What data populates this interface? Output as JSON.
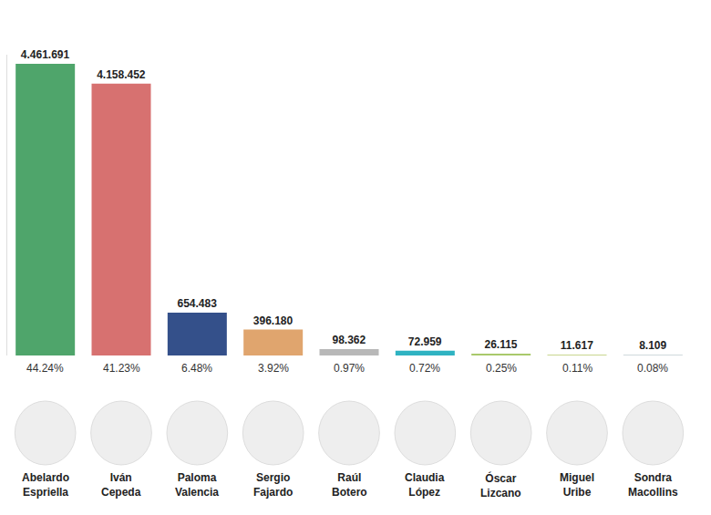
{
  "chart_data": {
    "type": "bar",
    "categories": [
      "Abelardo Espriella",
      "Iván Cepeda",
      "Paloma Valencia",
      "Sergio Fajardo",
      "Raúl Botero",
      "Claudia López",
      "Óscar Lizcano",
      "Miguel Uribe",
      "Sondra Macollins"
    ],
    "values": [
      4461691,
      4158452,
      654483,
      396180,
      98362,
      72959,
      26115,
      11617,
      8109
    ],
    "value_labels": [
      "4.461.691",
      "4.158.452",
      "654.483",
      "396.180",
      "98.362",
      "72.959",
      "26.115",
      "11.617",
      "8.109"
    ],
    "percentage_labels": [
      "44.24%",
      "41.23%",
      "6.48%",
      "3.92%",
      "0.97%",
      "0.72%",
      "0.25%",
      "0.11%",
      "0.08%"
    ],
    "colors": [
      "#4fa56b",
      "#d77170",
      "#34508a",
      "#e0a56e",
      "#b8b8b8",
      "#2fb3c2",
      "#a9c96b",
      "#c9d68e",
      "#cfd8dc"
    ],
    "ylim": [
      0,
      4600000
    ],
    "yticks": [],
    "grid": false,
    "data_labels": true,
    "tick_labels": false
  }
}
